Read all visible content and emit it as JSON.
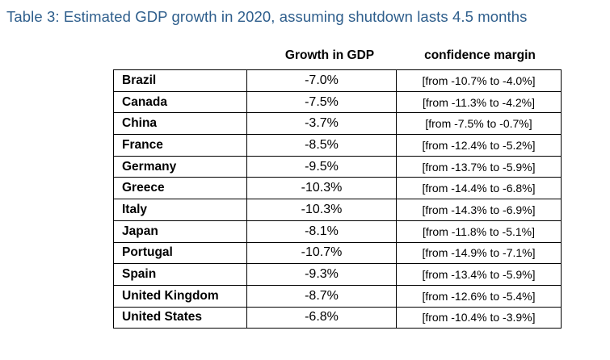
{
  "title": "Table 3: Estimated GDP growth in 2020, assuming shutdown lasts 4.5 months",
  "columns": {
    "growth": "Growth in GDP",
    "margin": "confidence margin"
  },
  "rows": [
    {
      "country": "Brazil",
      "growth": "-7.0%",
      "margin": "[from -10.7% to -4.0%]"
    },
    {
      "country": "Canada",
      "growth": "-7.5%",
      "margin": "[from -11.3% to -4.2%]"
    },
    {
      "country": "China",
      "growth": "-3.7%",
      "margin": "[from -7.5% to -0.7%]"
    },
    {
      "country": "France",
      "growth": "-8.5%",
      "margin": "[from -12.4% to -5.2%]"
    },
    {
      "country": "Germany",
      "growth": "-9.5%",
      "margin": "[from -13.7% to -5.9%]"
    },
    {
      "country": "Greece",
      "growth": "-10.3%",
      "margin": "[from -14.4% to -6.8%]"
    },
    {
      "country": "Italy",
      "growth": "-10.3%",
      "margin": "[from -14.3% to -6.9%]"
    },
    {
      "country": "Japan",
      "growth": "-8.1%",
      "margin": "[from -11.8% to -5.1%]"
    },
    {
      "country": "Portugal",
      "growth": "-10.7%",
      "margin": "[from -14.9% to -7.1%]"
    },
    {
      "country": "Spain",
      "growth": "-9.3%",
      "margin": "[from -13.4% to -5.9%]"
    },
    {
      "country": "United Kingdom",
      "growth": "-8.7%",
      "margin": "[from -12.6% to -5.4%]"
    },
    {
      "country": "United States",
      "growth": "-6.8%",
      "margin": "[from -10.4% to -3.9%]"
    }
  ]
}
